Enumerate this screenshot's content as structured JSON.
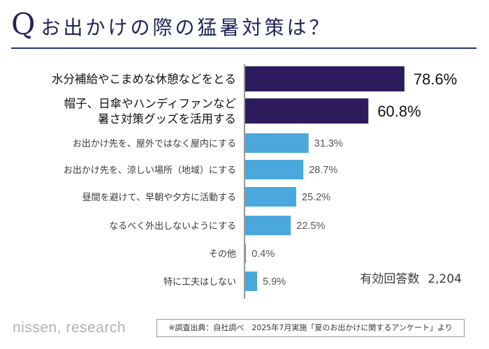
{
  "header": {
    "q_letter": "Q",
    "title": "お出かけの際の猛暑対策は？"
  },
  "colors": {
    "title": "#20245c",
    "top_bar": "#2d1b5e",
    "bar": "#4aa8dd",
    "axis": "#777777",
    "label": "#3a3a3a"
  },
  "chart_data": {
    "type": "bar",
    "orientation": "horizontal",
    "title": "お出かけの際の猛暑対策は？",
    "unit": "%",
    "xlim": [
      0,
      100
    ],
    "categories": [
      "水分補給やこまめな休憩などをとる",
      "帽子、日傘やハンディファンなど\n暑さ対策グッズを活用する",
      "お出かけ先を、屋外ではなく屋内にする",
      "お出かけ先を、涼しい場所（地域）にする",
      "昼間を避けて、早朝や夕方に活動する",
      "なるべく外出しないようにする",
      "その他",
      "特に工夫はしない"
    ],
    "values": [
      78.6,
      60.8,
      31.3,
      28.7,
      25.2,
      22.5,
      0.4,
      5.9
    ],
    "value_labels": [
      "78.6%",
      "60.8%",
      "31.3%",
      "28.7%",
      "25.2%",
      "22.5%",
      "0.4%",
      "5.9%"
    ],
    "highlight_top": 2
  },
  "respondents": {
    "label": "有効回答数",
    "value": "2,204"
  },
  "footer": {
    "brand": "nissen, research",
    "source": "※調査出典：自社調べ　2025年7月実施「夏のお出かけに関するアンケート」より"
  }
}
